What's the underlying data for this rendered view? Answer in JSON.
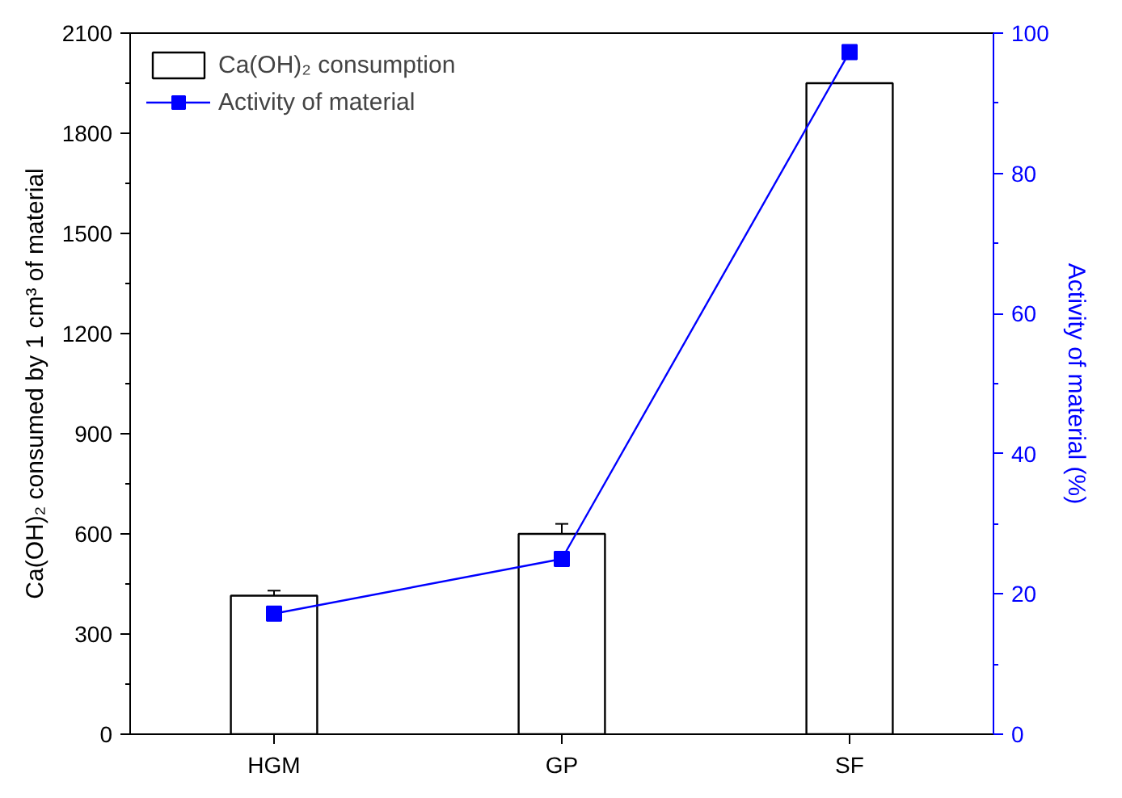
{
  "chart_data": {
    "type": "bar",
    "categories": [
      "HGM",
      "GP",
      "SF"
    ],
    "ylabel": "Ca(OH)₂ consumed by 1 cm³ of material",
    "y2label": "Activity of material (%)",
    "ylim": [
      0,
      2100
    ],
    "yticks": [
      0,
      300,
      600,
      900,
      1200,
      1500,
      1800,
      2100
    ],
    "y2lim": [
      0,
      100
    ],
    "y2ticks": [
      0,
      20,
      40,
      60,
      80,
      100
    ],
    "legend": "top left",
    "grid": false,
    "series": [
      {
        "name": "Ca(OH)₂ consumption",
        "color": "#ffffff",
        "values": [
          415,
          600,
          1950
        ],
        "errors": [
          15,
          30,
          null
        ]
      },
      {
        "name": "Activity of material",
        "type": "line",
        "axis": "y2",
        "color": "#0000ff",
        "marker": "square",
        "values": [
          17.2,
          25,
          97.3
        ]
      }
    ]
  }
}
